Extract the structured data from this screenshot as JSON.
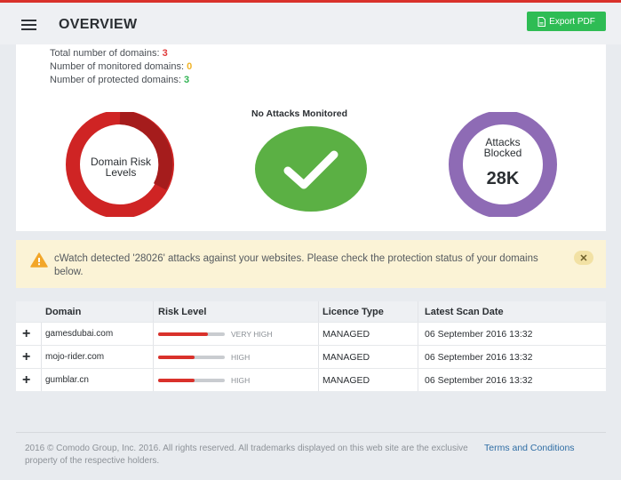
{
  "header": {
    "title": "OVERVIEW",
    "export_label": "Export PDF"
  },
  "stats": {
    "total_label": "Total number of domains:",
    "total_value": "3",
    "monitored_label": "Number of monitored domains:",
    "monitored_value": "0",
    "protected_label": "Number of protected domains:",
    "protected_value": "3"
  },
  "widgets": {
    "risk_label_1": "Domain Risk",
    "risk_label_2": "Levels",
    "attacks_title": "No Attacks Monitored",
    "blocked_label_1": "Attacks",
    "blocked_label_2": "Blocked",
    "blocked_value": "28K"
  },
  "alert": {
    "message": "cWatch detected '28026' attacks against your websites. Please check the protection status of your domains below.",
    "close_glyph": "✕"
  },
  "table": {
    "headers": {
      "domain": "Domain",
      "risk": "Risk Level",
      "licence": "Licence Type",
      "scan": "Latest Scan Date"
    },
    "rows": [
      {
        "domain": "gamesdubai.com",
        "risk": "VERY HIGH",
        "risk_level": 0.75,
        "licence": "MANAGED",
        "scan": "06 September 2016 13:32"
      },
      {
        "domain": "mojo-rider.com",
        "risk": "HIGH",
        "risk_level": 0.55,
        "licence": "MANAGED",
        "scan": "06 September 2016 13:32"
      },
      {
        "domain": "gumblar.cn",
        "risk": "HIGH",
        "risk_level": 0.55,
        "licence": "MANAGED",
        "scan": "06 September 2016 13:32"
      }
    ]
  },
  "footer": {
    "copyright": "2016 © Comodo Group, Inc. 2016. All rights reserved. All trademarks displayed on this web site are the exclusive property of the respective holders.",
    "terms_label": "Terms and Conditions"
  },
  "colors": {
    "accent_red": "#d9312b",
    "success_green": "#2ebc54",
    "check_green": "#5bb044",
    "purple": "#8e6bb5",
    "alert_bg": "#fbf3d6"
  }
}
